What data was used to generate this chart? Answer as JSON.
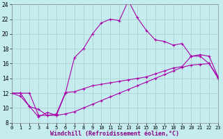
{
  "xlabel": "Windchill (Refroidissement éolien,°C)",
  "background_color": "#c5edf0",
  "line_color": "#aa00aa",
  "grid_color": "#aacccc",
  "xmin": 0,
  "xmax": 23,
  "ymin": 8,
  "ymax": 24,
  "yticks": [
    8,
    10,
    12,
    14,
    16,
    18,
    20,
    22,
    24
  ],
  "xticks": [
    0,
    1,
    2,
    3,
    4,
    5,
    6,
    7,
    8,
    9,
    10,
    11,
    12,
    13,
    14,
    15,
    16,
    17,
    18,
    19,
    20,
    21,
    22,
    23
  ],
  "curve1_x": [
    0,
    1,
    2,
    3,
    4,
    5,
    6,
    7,
    8,
    9,
    10,
    11,
    12,
    13,
    14,
    15,
    16,
    17,
    18,
    19,
    20,
    21,
    22,
    23
  ],
  "curve1_y": [
    12.0,
    11.6,
    10.2,
    8.8,
    9.4,
    9.0,
    12.0,
    16.8,
    18.0,
    20.0,
    21.5,
    22.0,
    21.8,
    24.5,
    22.2,
    20.5,
    19.2,
    19.0,
    18.5,
    18.7,
    17.0,
    17.0,
    16.0,
    14.0
  ],
  "curve2_x": [
    0,
    1,
    2,
    3,
    4,
    5,
    6,
    7,
    8,
    9,
    10,
    11,
    12,
    13,
    14,
    15,
    16,
    17,
    18,
    19,
    20,
    21,
    22,
    23
  ],
  "curve2_y": [
    12.0,
    12.0,
    10.2,
    9.8,
    9.0,
    9.2,
    12.1,
    12.2,
    12.6,
    13.0,
    13.2,
    13.4,
    13.6,
    13.8,
    14.0,
    14.2,
    14.6,
    15.0,
    15.4,
    15.6,
    17.0,
    17.2,
    17.0,
    14.2
  ],
  "curve3_x": [
    0,
    1,
    2,
    3,
    4,
    5,
    6,
    7,
    8,
    9,
    10,
    11,
    12,
    13,
    14,
    15,
    16,
    17,
    18,
    19,
    20,
    21,
    22,
    23
  ],
  "curve3_y": [
    12.0,
    12.0,
    12.0,
    9.0,
    9.0,
    9.0,
    9.2,
    9.5,
    10.0,
    10.5,
    11.0,
    11.5,
    12.0,
    12.5,
    13.0,
    13.5,
    14.0,
    14.5,
    15.0,
    15.5,
    15.8,
    15.9,
    16.0,
    14.2
  ]
}
